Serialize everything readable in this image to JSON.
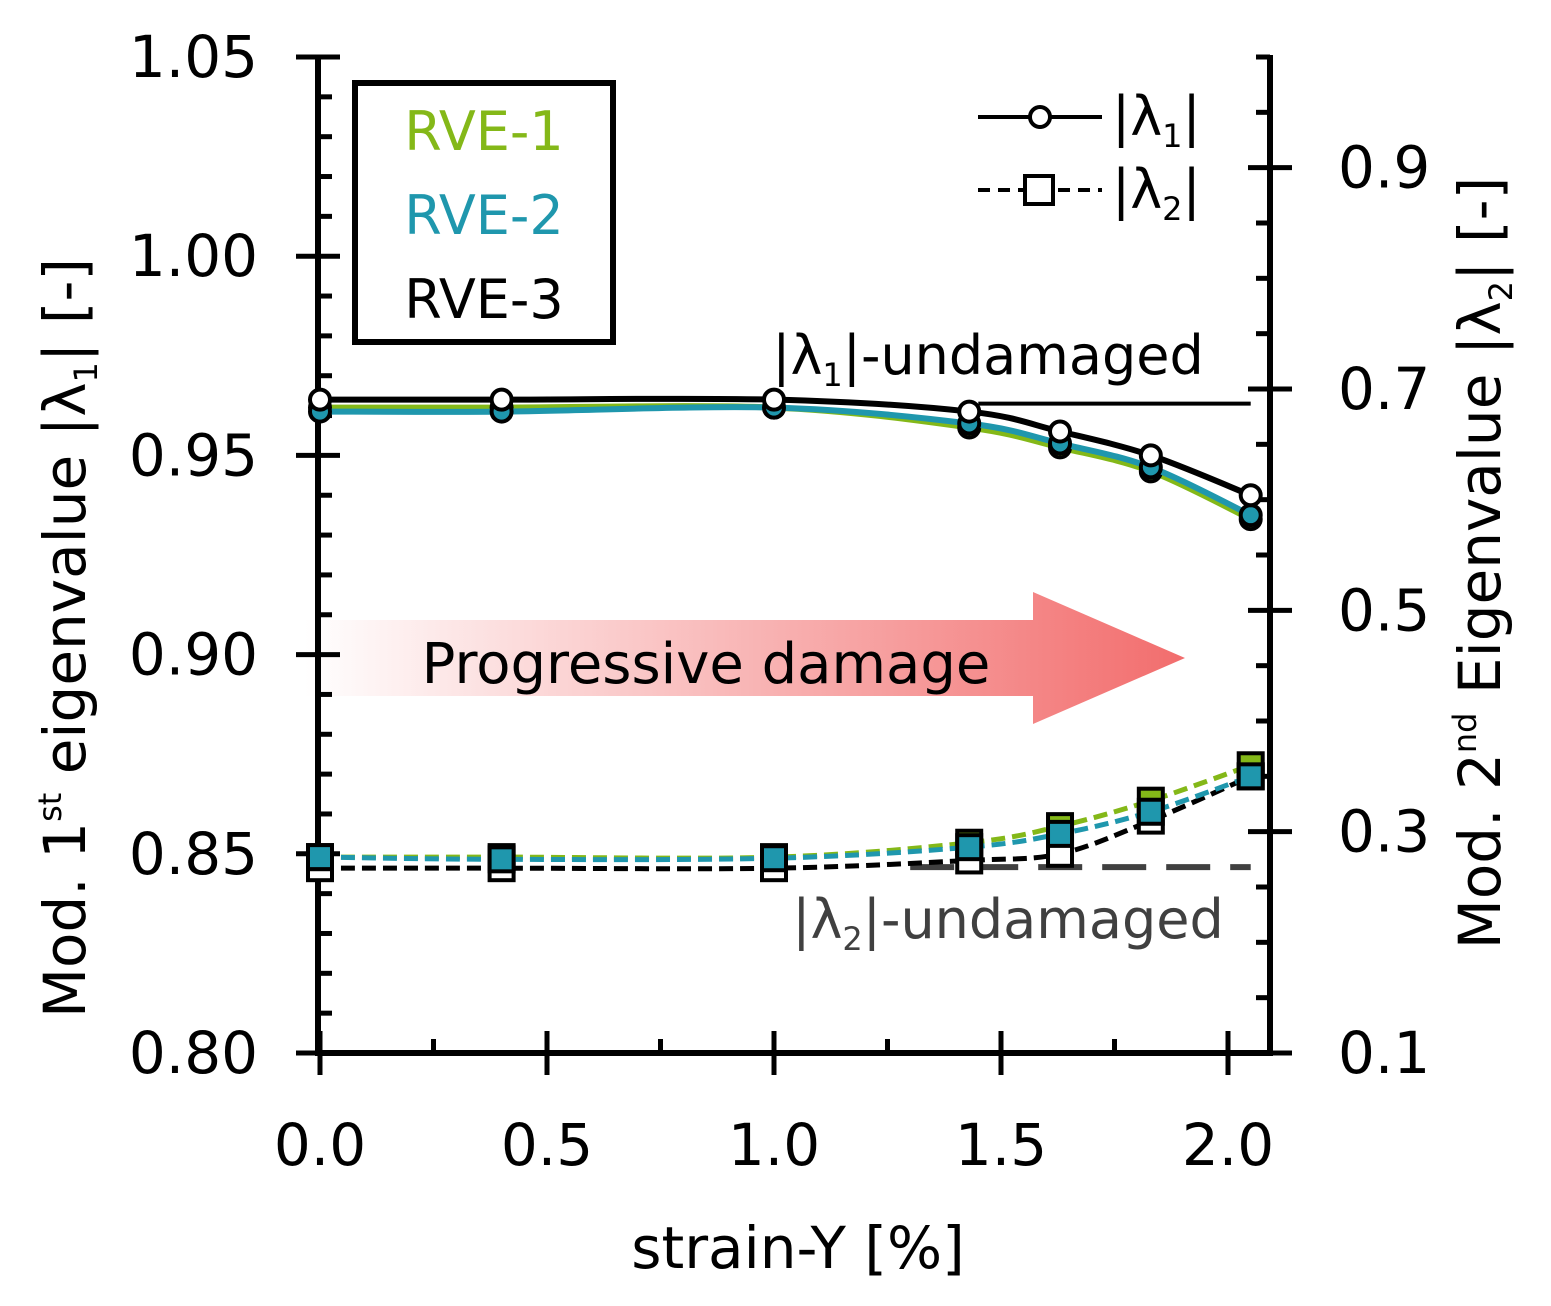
{
  "chart_data": {
    "type": "line",
    "title": "",
    "xlabel": "strain-Y [%]",
    "ylabel": {
      "prefix": "Mod. 1",
      "sup": "st",
      "mid": " eigenvalue  |λ",
      "sub": "1",
      "suffix": "|  [-]"
    },
    "y2label": {
      "prefix": "Mod. 2",
      "sup": "nd",
      "mid": " Eigenvalue  |λ",
      "sub": "2",
      "suffix": "|  [-]"
    },
    "xlim": [
      0.0,
      2.1
    ],
    "ylim": [
      0.8,
      1.05
    ],
    "y2lim": [
      0.1,
      1.0
    ],
    "x_ticks": [
      "0.0",
      "0.5",
      "1.0",
      "1.5",
      "2.0"
    ],
    "y_ticks": [
      "0.80",
      "0.85",
      "0.90",
      "0.95",
      "1.00",
      "1.05"
    ],
    "y2_ticks": [
      "0.1",
      "0.3",
      "0.5",
      "0.7",
      "0.9"
    ],
    "rve_legend": [
      {
        "label": "RVE-1",
        "color": "#84b818"
      },
      {
        "label": "RVE-2",
        "color": "#1f97ad"
      },
      {
        "label": "RVE-3",
        "color": "#000000"
      }
    ],
    "marker_legend": [
      {
        "pre": "|λ",
        "sub": "1",
        "post": "|",
        "style": "solid-circle"
      },
      {
        "pre": "|λ",
        "sub": "2",
        "post": "|",
        "style": "dashed-square"
      }
    ],
    "x": [
      0.0,
      0.4,
      1.0,
      1.43,
      1.63,
      1.83,
      2.05
    ],
    "series": [
      {
        "name": "RVE-1 |λ1|",
        "rve": "RVE-1",
        "axis": "y1",
        "marker": "circle",
        "color": "#84b818",
        "values": [
          0.962,
          0.962,
          0.962,
          0.957,
          0.952,
          0.946,
          0.934
        ]
      },
      {
        "name": "RVE-2 |λ1|",
        "rve": "RVE-2",
        "axis": "y1",
        "marker": "circle",
        "color": "#1f97ad",
        "values": [
          0.961,
          0.961,
          0.962,
          0.958,
          0.953,
          0.947,
          0.935
        ]
      },
      {
        "name": "RVE-3 |λ1|",
        "rve": "RVE-3",
        "axis": "y1",
        "marker": "circle",
        "color": "#000000",
        "values": [
          0.964,
          0.964,
          0.964,
          0.961,
          0.956,
          0.95,
          0.94
        ]
      },
      {
        "name": "RVE-3 |λ2|",
        "rve": "RVE-3",
        "axis": "y2",
        "marker": "square",
        "color": "#000000",
        "values": [
          0.267,
          0.267,
          0.267,
          0.274,
          0.28,
          0.31,
          0.35
        ]
      },
      {
        "name": "RVE-1 |λ2|",
        "rve": "RVE-1",
        "axis": "y2",
        "marker": "square",
        "color": "#84b818",
        "values": [
          0.277,
          0.277,
          0.277,
          0.29,
          0.305,
          0.328,
          0.36
        ]
      },
      {
        "name": "RVE-2 |λ2|",
        "rve": "RVE-2",
        "axis": "y2",
        "marker": "square",
        "color": "#1f97ad",
        "values": [
          0.277,
          0.275,
          0.276,
          0.286,
          0.298,
          0.318,
          0.35
        ]
      }
    ],
    "reference_lines": [
      {
        "pre": "|λ",
        "sub": "1",
        "post": "|-undamaged",
        "axis": "y1",
        "value": 0.963,
        "x_start": 1.45,
        "x_end": 2.05,
        "style": "solid",
        "color": "#000000"
      },
      {
        "pre": "|λ",
        "sub": "2",
        "post": "|-undamaged",
        "axis": "y2",
        "value": 0.268,
        "x_start": 1.3,
        "x_end": 2.05,
        "style": "dashed",
        "color": "#404040"
      }
    ],
    "annotation": {
      "text": "Progressive damage",
      "color": "#f07070"
    }
  }
}
